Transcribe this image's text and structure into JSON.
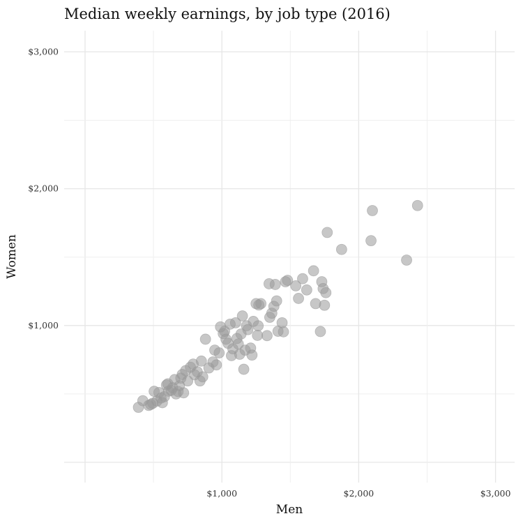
{
  "chart_data": {
    "type": "scatter",
    "title": "Median weekly earnings, by job type (2016)",
    "xlabel": "Men",
    "ylabel": "Women",
    "xlim": [
      0,
      3100
    ],
    "ylim": [
      0,
      3100
    ],
    "x_ticks": [
      {
        "value": 1000,
        "label": "$1,000"
      },
      {
        "value": 2000,
        "label": "$2,000"
      },
      {
        "value": 3000,
        "label": "$3,000"
      }
    ],
    "y_ticks": [
      {
        "value": 1000,
        "label": "$1,000"
      },
      {
        "value": 2000,
        "label": "$2,000"
      },
      {
        "value": 3000,
        "label": "$3,000"
      }
    ],
    "grid": true,
    "point_color": "#999999",
    "points": [
      [
        390,
        402
      ],
      [
        422,
        450
      ],
      [
        465,
        416
      ],
      [
        480,
        423
      ],
      [
        495,
        432
      ],
      [
        505,
        519
      ],
      [
        525,
        448
      ],
      [
        540,
        510
      ],
      [
        555,
        470
      ],
      [
        565,
        436
      ],
      [
        580,
        480
      ],
      [
        595,
        565
      ],
      [
        605,
        574
      ],
      [
        610,
        520
      ],
      [
        630,
        526
      ],
      [
        640,
        545
      ],
      [
        655,
        605
      ],
      [
        665,
        500
      ],
      [
        680,
        518
      ],
      [
        690,
        560
      ],
      [
        700,
        615
      ],
      [
        710,
        642
      ],
      [
        720,
        508
      ],
      [
        735,
        670
      ],
      [
        750,
        595
      ],
      [
        770,
        695
      ],
      [
        790,
        718
      ],
      [
        800,
        640
      ],
      [
        820,
        662
      ],
      [
        840,
        595
      ],
      [
        850,
        740
      ],
      [
        860,
        625
      ],
      [
        880,
        900
      ],
      [
        905,
        690
      ],
      [
        935,
        734
      ],
      [
        948,
        820
      ],
      [
        960,
        712
      ],
      [
        980,
        800
      ],
      [
        990,
        990
      ],
      [
        1010,
        941
      ],
      [
        1020,
        958
      ],
      [
        1030,
        900
      ],
      [
        1045,
        870
      ],
      [
        1060,
        1010
      ],
      [
        1070,
        780
      ],
      [
        1080,
        830
      ],
      [
        1100,
        1020
      ],
      [
        1110,
        905
      ],
      [
        1120,
        865
      ],
      [
        1130,
        790
      ],
      [
        1140,
        938
      ],
      [
        1150,
        1070
      ],
      [
        1160,
        680
      ],
      [
        1170,
        820
      ],
      [
        1180,
        998
      ],
      [
        1190,
        970
      ],
      [
        1210,
        835
      ],
      [
        1220,
        784
      ],
      [
        1230,
        1030
      ],
      [
        1250,
        1160
      ],
      [
        1260,
        928
      ],
      [
        1265,
        998
      ],
      [
        1270,
        1150
      ],
      [
        1285,
        1160
      ],
      [
        1330,
        926
      ],
      [
        1345,
        1305
      ],
      [
        1350,
        1060
      ],
      [
        1365,
        1090
      ],
      [
        1380,
        1140
      ],
      [
        1390,
        1300
      ],
      [
        1400,
        1180
      ],
      [
        1410,
        958
      ],
      [
        1440,
        1020
      ],
      [
        1450,
        954
      ],
      [
        1465,
        1320
      ],
      [
        1480,
        1330
      ],
      [
        1540,
        1290
      ],
      [
        1560,
        1198
      ],
      [
        1590,
        1342
      ],
      [
        1620,
        1260
      ],
      [
        1670,
        1400
      ],
      [
        1685,
        1160
      ],
      [
        1720,
        956
      ],
      [
        1730,
        1320
      ],
      [
        1740,
        1270
      ],
      [
        1750,
        1148
      ],
      [
        1760,
        1240
      ],
      [
        1770,
        1680
      ],
      [
        1875,
        1556
      ],
      [
        2090,
        1620
      ],
      [
        2100,
        1840
      ],
      [
        2350,
        1478
      ],
      [
        2430,
        1877
      ]
    ]
  }
}
